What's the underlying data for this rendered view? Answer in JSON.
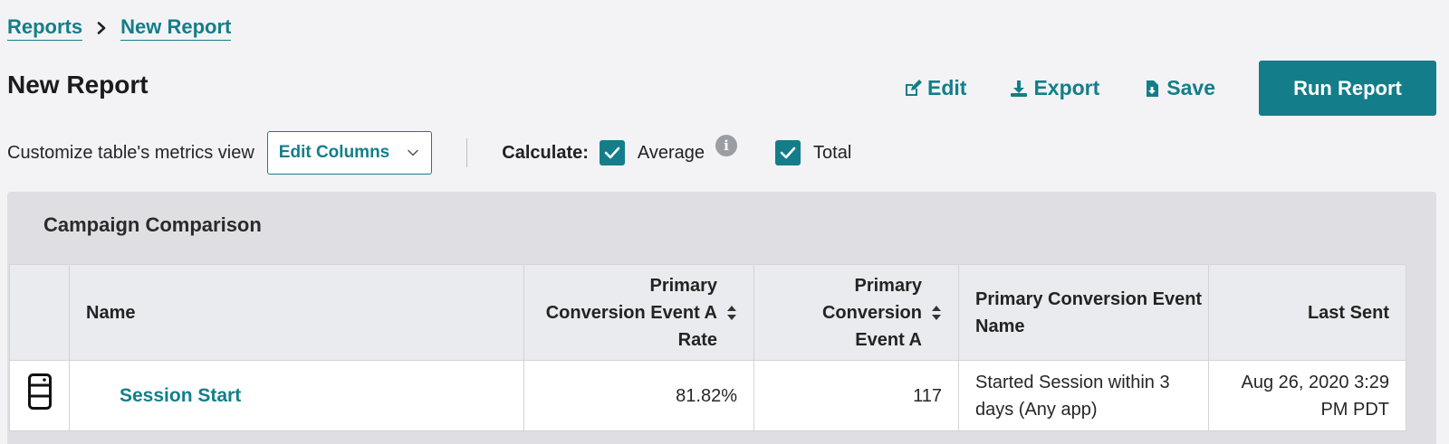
{
  "breadcrumb": {
    "items": [
      "Reports",
      "New Report"
    ]
  },
  "header": {
    "title": "New Report",
    "actions": {
      "edit_label": "Edit",
      "export_label": "Export",
      "save_label": "Save",
      "run_label": "Run Report"
    }
  },
  "controls": {
    "customize_label": "Customize table's metrics view",
    "edit_columns_label": "Edit Columns",
    "calculate_label": "Calculate:",
    "average_label": "Average",
    "average_checked": true,
    "total_label": "Total",
    "total_checked": true,
    "info_glyph": "i"
  },
  "panel": {
    "title": "Campaign Comparison"
  },
  "table": {
    "columns": [
      {
        "label": ""
      },
      {
        "label": "Name"
      },
      {
        "label": "Primary Conversion Event A Rate",
        "sortable": true
      },
      {
        "label": "Primary Conversion Event A",
        "sortable": true
      },
      {
        "label": "Primary Conversion Event Name"
      },
      {
        "label": "Last Sent"
      }
    ],
    "rows": [
      {
        "icon": "device-icon",
        "name": "Session Start",
        "rate": "81.82%",
        "event_a": "117",
        "event_name": "Started Session within 3 days (Any app)",
        "last_sent": "Aug 26, 2020 3:29 PM PDT"
      }
    ]
  },
  "colors": {
    "accent": "#137e8a",
    "background": "#f3f3f5",
    "panel": "#dfdfe3",
    "header_row": "#e9ebee"
  }
}
